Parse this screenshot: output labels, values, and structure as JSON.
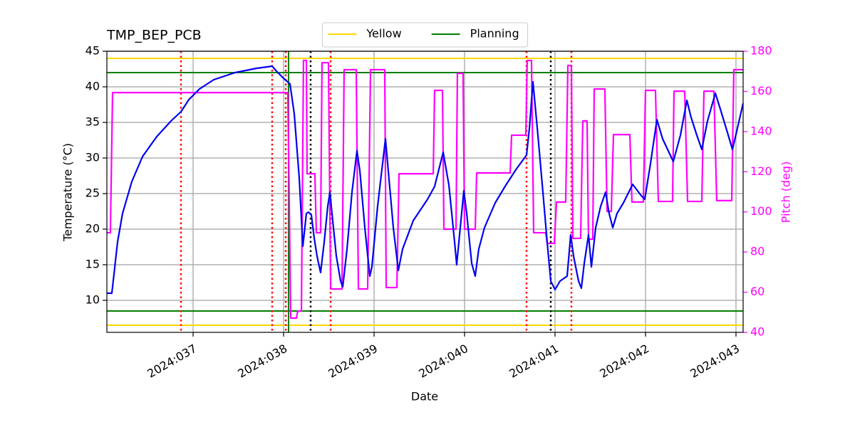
{
  "chart_data": {
    "type": "line",
    "title": "TMP_BEP_PCB",
    "x_label": "Date",
    "y_label": "Temperature (°C)",
    "y2_label": "Pitch (deg)",
    "xlim": [
      36.047,
      43.079
    ],
    "xticks": [
      {
        "value": 37,
        "label": "2024:037"
      },
      {
        "value": 38,
        "label": "2024:038"
      },
      {
        "value": 39,
        "label": "2024:039"
      },
      {
        "value": 40,
        "label": "2024:040"
      },
      {
        "value": 41,
        "label": "2024:041"
      },
      {
        "value": 42,
        "label": "2024:042"
      },
      {
        "value": 43,
        "label": "2024:043"
      }
    ],
    "ylim": [
      5.5,
      45
    ],
    "yticks": [
      10,
      15,
      20,
      25,
      30,
      35,
      40,
      45
    ],
    "y2lim": [
      40,
      180
    ],
    "y2ticks": [
      40,
      60,
      80,
      100,
      120,
      140,
      160,
      180
    ],
    "y2_color": "#ff00ff",
    "grid": true,
    "legend": "top-outside",
    "hlines": [
      {
        "name": "Yellow",
        "color": "#ffd700",
        "values": [
          44,
          6.5
        ]
      },
      {
        "name": "Planning",
        "color": "#008000",
        "values": [
          42,
          8.5
        ]
      }
    ],
    "vlines": [
      {
        "color": "#ff0000",
        "style": "dotted",
        "x": [
          36.866,
          37.874,
          38.024,
          38.52,
          40.685,
          41.181
        ]
      },
      {
        "color": "#000000",
        "style": "dotted",
        "x": [
          38.299,
          40.953
        ]
      },
      {
        "color": "#008000",
        "style": "solid",
        "x": [
          38.055
        ]
      }
    ],
    "series": [
      {
        "color": "#ff00ff",
        "axis": "y2",
        "x": [
          36.047,
          36.086,
          36.11,
          38.047,
          38.079,
          38.142,
          38.157,
          38.197,
          38.22,
          38.252,
          38.26,
          38.346,
          38.362,
          38.409,
          38.425,
          38.496,
          38.52,
          38.646,
          38.669,
          38.803,
          38.827,
          38.929,
          38.961,
          39.118,
          39.134,
          39.252,
          39.276,
          39.654,
          39.669,
          39.756,
          39.772,
          39.906,
          39.921,
          39.984,
          40.0,
          40.118,
          40.134,
          40.504,
          40.52,
          40.677,
          40.693,
          40.74,
          40.764,
          40.898,
          40.913,
          40.992,
          41.016,
          41.118,
          41.142,
          41.181,
          41.197,
          41.283,
          41.307,
          41.354,
          41.37,
          41.417,
          41.433,
          41.551,
          41.575,
          41.622,
          41.646,
          41.827,
          41.85,
          41.976,
          42.0,
          42.11,
          42.142,
          42.299,
          42.315,
          42.433,
          42.465,
          42.622,
          42.646,
          42.756,
          42.787,
          42.953,
          42.976,
          43.079
        ],
        "values": [
          89.6,
          89.6,
          159.4,
          159.4,
          47.1,
          47.1,
          50.6,
          50.6,
          175.4,
          175.4,
          119.0,
          119.0,
          89.6,
          89.6,
          174.3,
          174.3,
          61.6,
          61.6,
          170.8,
          170.8,
          61.6,
          61.6,
          170.8,
          170.8,
          62.3,
          62.3,
          119.0,
          119.0,
          160.5,
          160.5,
          91.4,
          91.4,
          169.0,
          169.0,
          91.4,
          91.4,
          119.4,
          119.4,
          138.2,
          138.2,
          175.4,
          175.4,
          89.6,
          89.6,
          84.3,
          84.3,
          104.9,
          104.9,
          172.9,
          172.9,
          86.8,
          86.8,
          145.3,
          145.3,
          86.4,
          86.4,
          161.2,
          161.2,
          100.2,
          100.2,
          138.5,
          138.5,
          104.9,
          104.9,
          160.5,
          160.5,
          105.2,
          105.2,
          160.1,
          160.1,
          105.2,
          105.2,
          160.1,
          160.1,
          105.6,
          105.6,
          170.8,
          170.8
        ]
      },
      {
        "color": "#0000ee",
        "axis": "y",
        "x": [
          36.047,
          36.102,
          36.126,
          36.165,
          36.22,
          36.323,
          36.441,
          36.598,
          36.756,
          36.866,
          36.953,
          37.071,
          37.228,
          37.464,
          37.701,
          37.874,
          37.921,
          38.0,
          38.071,
          38.118,
          38.173,
          38.213,
          38.252,
          38.275,
          38.307,
          38.339,
          38.37,
          38.409,
          38.449,
          38.488,
          38.512,
          38.535,
          38.583,
          38.63,
          38.654,
          38.701,
          38.756,
          38.811,
          38.843,
          38.898,
          38.953,
          38.976,
          39.039,
          39.094,
          39.126,
          39.157,
          39.213,
          39.268,
          39.315,
          39.433,
          39.591,
          39.669,
          39.764,
          39.827,
          39.89,
          39.913,
          39.945,
          39.992,
          40.024,
          40.079,
          40.118,
          40.157,
          40.22,
          40.339,
          40.457,
          40.575,
          40.685,
          40.717,
          40.756,
          40.811,
          40.866,
          40.913,
          40.953,
          41.0,
          41.055,
          41.134,
          41.173,
          41.205,
          41.26,
          41.291,
          41.323,
          41.37,
          41.402,
          41.449,
          41.504,
          41.559,
          41.598,
          41.638,
          41.685,
          41.756,
          41.858,
          41.953,
          41.992,
          42.055,
          42.126,
          42.189,
          42.307,
          42.386,
          42.457,
          42.504,
          42.567,
          42.622,
          42.685,
          42.772,
          42.819,
          42.898,
          42.961,
          43.016,
          43.079
        ],
        "values": [
          11.0,
          11.0,
          13.7,
          18.2,
          22.2,
          26.7,
          30.2,
          33.0,
          35.2,
          36.5,
          38.2,
          39.7,
          41.0,
          42.0,
          42.6,
          42.9,
          42.2,
          41.2,
          40.4,
          36.2,
          27.2,
          17.6,
          22.2,
          22.4,
          22.0,
          18.7,
          16.2,
          13.9,
          18.2,
          23.2,
          25.2,
          22.2,
          16.2,
          12.7,
          11.9,
          17.2,
          25.2,
          31.0,
          28.2,
          20.2,
          13.4,
          14.7,
          23.2,
          29.2,
          32.7,
          28.2,
          20.2,
          14.2,
          17.2,
          21.2,
          24.2,
          26.0,
          30.8,
          26.2,
          18.2,
          15.0,
          19.2,
          25.4,
          22.2,
          15.2,
          13.4,
          17.2,
          20.2,
          23.7,
          26.2,
          28.5,
          30.4,
          34.2,
          40.7,
          33.2,
          25.2,
          18.2,
          12.7,
          11.5,
          12.7,
          13.4,
          19.2,
          16.2,
          12.7,
          11.7,
          15.2,
          19.2,
          14.7,
          20.2,
          23.2,
          25.2,
          22.2,
          20.2,
          22.2,
          23.7,
          26.3,
          24.7,
          24.2,
          29.2,
          35.4,
          32.7,
          29.5,
          33.2,
          38.1,
          35.7,
          33.2,
          31.2,
          35.2,
          39.1,
          37.2,
          33.9,
          31.2,
          34.2,
          37.7
        ]
      }
    ]
  }
}
